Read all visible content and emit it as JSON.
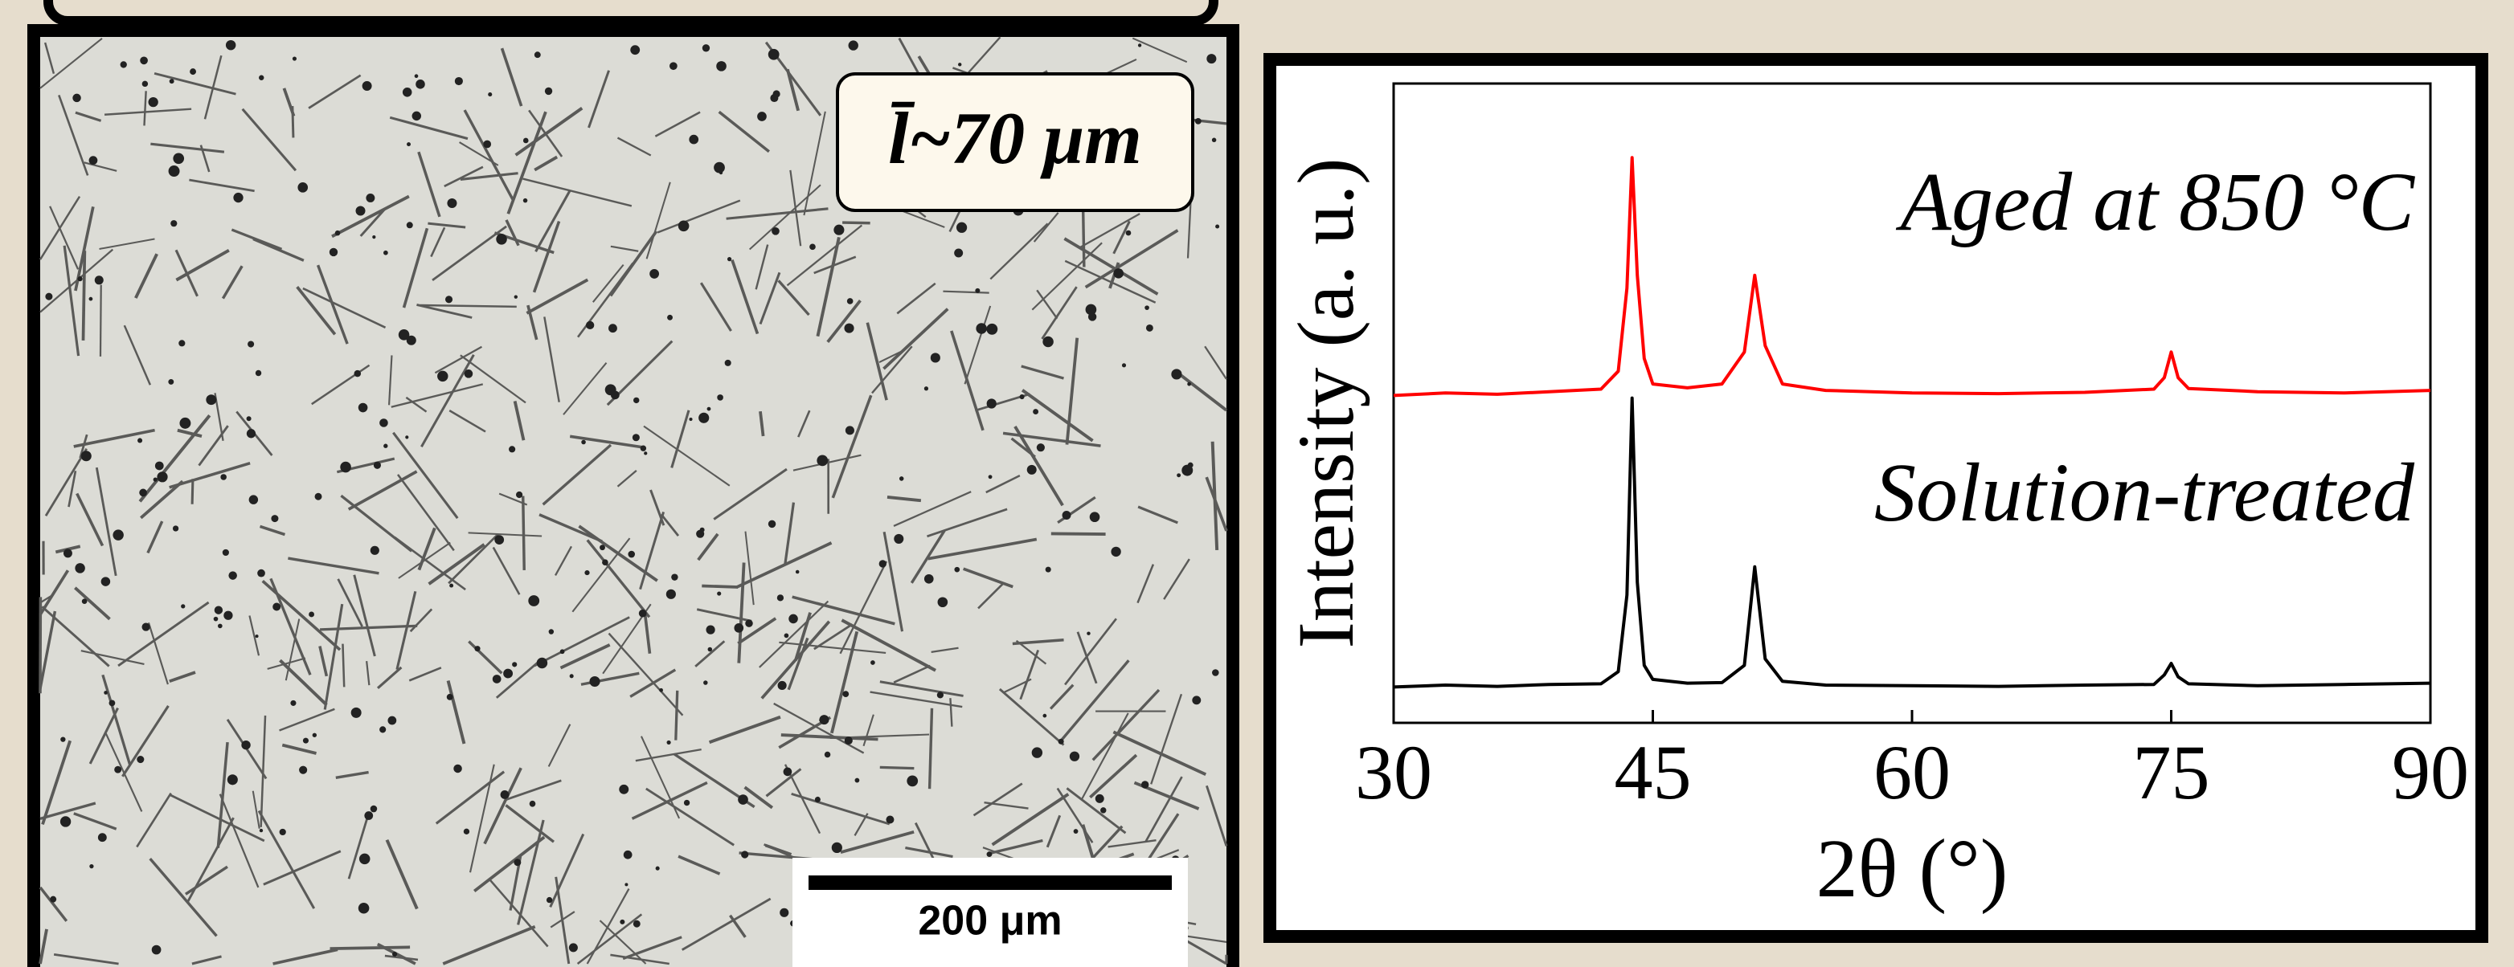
{
  "micrograph": {
    "grain_size_label": "l̄~70 μm",
    "scale_bar_label": "200 μm"
  },
  "chart_data": {
    "type": "line",
    "x_label": "2θ (°)",
    "y_label": "Intensity (a. u.)",
    "x": [
      30,
      33,
      36,
      39,
      42,
      43,
      43.5,
      43.8,
      44.1,
      44.5,
      45,
      47,
      49,
      50.3,
      50.9,
      51.5,
      52.5,
      55,
      60,
      65,
      70,
      74,
      74.6,
      75,
      75.4,
      76,
      80,
      85,
      90
    ],
    "series": [
      {
        "name": "Aged at 850 °C",
        "color": "#ff0000",
        "values": [
          51.2,
          51.6,
          51.4,
          51.8,
          52.2,
          55,
          68,
          88.4,
          70,
          57,
          53,
          52.4,
          53,
          58,
          70,
          59,
          53,
          52,
          51.6,
          51.5,
          51.7,
          52.2,
          54,
          58,
          54,
          52.3,
          51.8,
          51.6,
          52
        ]
      },
      {
        "name": "Solution-treated",
        "color": "#000000",
        "values": [
          5.6,
          5.9,
          5.7,
          6.0,
          6.1,
          8,
          20,
          50.8,
          22,
          9,
          6.8,
          6.2,
          6.3,
          9,
          24.4,
          10,
          6.5,
          5.9,
          5.8,
          5.7,
          5.9,
          6.0,
          7.5,
          9.3,
          7.2,
          6.1,
          5.8,
          6.0,
          6.2
        ]
      }
    ],
    "xlim": [
      30,
      90
    ],
    "xticks": [
      30,
      45,
      60,
      75,
      90
    ],
    "ylim": [
      0,
      100
    ]
  }
}
